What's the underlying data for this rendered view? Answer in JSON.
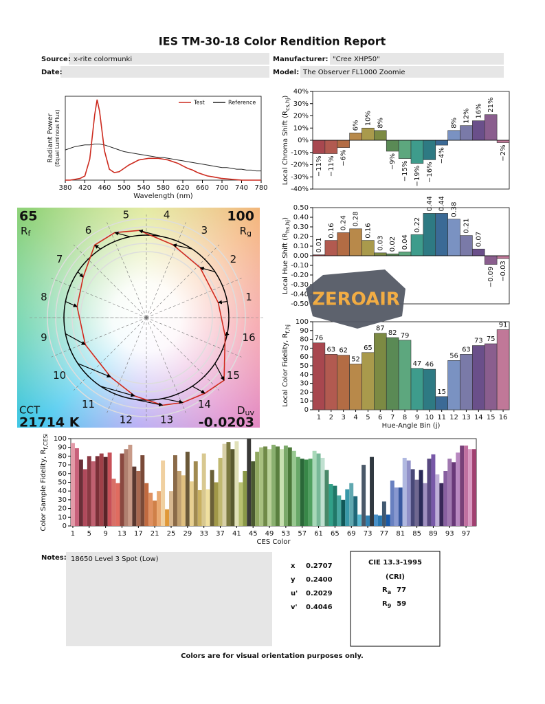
{
  "header": {
    "title": "IES TM-30-18 Color Rendition Report",
    "source_label": "Source:",
    "source": "x-rite colormunki",
    "date_label": "Date:",
    "manufacturer_label": "Manufacturer:",
    "manufacturer": "\"Cree XHP50\"",
    "model_label": "Model:",
    "model": "The Observer FL1000 Zoomie"
  },
  "chart_data": [
    {
      "type": "line",
      "x_label": "Wavelength (nm)",
      "y_label": "Radiant Power",
      "y_label_note": "(Equal Luminous Flux)",
      "legend": "upper right",
      "x": [
        380,
        390,
        400,
        410,
        420,
        430,
        440,
        445,
        450,
        460,
        470,
        480,
        490,
        500,
        510,
        520,
        530,
        540,
        550,
        560,
        570,
        580,
        590,
        600,
        610,
        620,
        630,
        640,
        650,
        660,
        670,
        680,
        690,
        700,
        710,
        720,
        730,
        740,
        750,
        760,
        770,
        780
      ],
      "series": [
        {
          "name": "Test",
          "color": "#cc2a1e",
          "values": [
            0,
            0,
            0.01,
            0.02,
            0.05,
            0.25,
            0.78,
            0.96,
            0.82,
            0.35,
            0.13,
            0.09,
            0.1,
            0.14,
            0.18,
            0.21,
            0.24,
            0.25,
            0.26,
            0.26,
            0.26,
            0.25,
            0.24,
            0.22,
            0.2,
            0.17,
            0.14,
            0.12,
            0.09,
            0.07,
            0.05,
            0.04,
            0.03,
            0.02,
            0.015,
            0.01,
            0.005,
            0,
            0,
            0,
            0,
            0
          ]
        },
        {
          "name": "Reference",
          "color": "#222222",
          "values": [
            0.36,
            0.38,
            0.4,
            0.41,
            0.42,
            0.42,
            0.43,
            0.43,
            0.43,
            0.42,
            0.4,
            0.38,
            0.36,
            0.34,
            0.33,
            0.32,
            0.31,
            0.3,
            0.29,
            0.28,
            0.27,
            0.27,
            0.26,
            0.25,
            0.24,
            0.23,
            0.22,
            0.21,
            0.2,
            0.19,
            0.18,
            0.17,
            0.16,
            0.15,
            0.15,
            0.14,
            0.13,
            0.13,
            0.12,
            0.12,
            0.11,
            0.11
          ]
        }
      ],
      "xlim": [
        380,
        780
      ],
      "xticks": [
        380,
        420,
        460,
        500,
        540,
        580,
        620,
        660,
        700,
        740,
        780
      ],
      "ylim": [
        0,
        1
      ]
    },
    {
      "type": "bar",
      "y_label": "Local Chroma Shift (R",
      "y_label_sub": "cs,hj",
      "y_label_end": ")",
      "values": [
        -11,
        -11,
        -6,
        6,
        10,
        8,
        -9,
        -15,
        -19,
        -16,
        -4,
        8,
        12,
        16,
        21,
        -2
      ],
      "value_labels": [
        "−11%",
        "−11%",
        "−6%",
        "6%",
        "10%",
        "8%",
        "−9%",
        "−15%",
        "−19%",
        "−16%",
        "−4%",
        "8%",
        "12%",
        "16%",
        "21%",
        "−2%"
      ],
      "colors": [
        "#a8474f",
        "#b25a50",
        "#b36c44",
        "#b8894a",
        "#a99a4c",
        "#7c8a43",
        "#5a8a55",
        "#5da77e",
        "#3e9c8c",
        "#2e7a83",
        "#3b6a96",
        "#7a92c2",
        "#7a7aa8",
        "#6a4f8a",
        "#8a5e8e",
        "#c07898"
      ],
      "ylim": [
        -40,
        40
      ],
      "yticks": [
        {
          "value": -40,
          "label": "-40%"
        },
        {
          "value": -30,
          "label": "-30%"
        },
        {
          "value": -20,
          "label": "-20%"
        },
        {
          "value": -10,
          "label": "-10%"
        },
        {
          "value": 0,
          "label": "0%"
        },
        {
          "value": 10,
          "label": "10%"
        },
        {
          "value": 20,
          "label": "20%"
        },
        {
          "value": 30,
          "label": "30%"
        },
        {
          "value": 40,
          "label": "40%"
        }
      ]
    },
    {
      "type": "bar",
      "y_label": "Local Hue Shift (R",
      "y_label_sub": "hs,hj",
      "y_label_end": ")",
      "values": [
        0.01,
        0.16,
        0.24,
        0.28,
        0.16,
        0.03,
        0.02,
        0.04,
        0.22,
        0.44,
        0.44,
        0.38,
        0.21,
        0.07,
        -0.09,
        -0.03
      ],
      "value_labels": [
        "0.01",
        "0.16",
        "0.24",
        "0.28",
        "0.16",
        "0.03",
        "0.02",
        "0.04",
        "0.22",
        "0.44",
        "0.44",
        "0.38",
        "0.21",
        "0.07",
        "−0.09",
        "−0.03"
      ],
      "colors": [
        "#a8474f",
        "#b25a50",
        "#b36c44",
        "#b8894a",
        "#a99a4c",
        "#7c8a43",
        "#5a8a55",
        "#5da77e",
        "#3e9c8c",
        "#2e7a83",
        "#3b6a96",
        "#7a92c2",
        "#7a7aa8",
        "#6a4f8a",
        "#8a5e8e",
        "#c07898"
      ],
      "ylim": [
        -0.5,
        0.5
      ],
      "yticks": [
        {
          "value": -0.5,
          "label": "-0.50"
        },
        {
          "value": -0.4,
          "label": "-0.40"
        },
        {
          "value": -0.3,
          "label": "-0.30"
        },
        {
          "value": -0.2,
          "label": "-0.20"
        },
        {
          "value": -0.1,
          "label": "-0.10"
        },
        {
          "value": 0,
          "label": "0.00"
        },
        {
          "value": 0.1,
          "label": "0.10"
        },
        {
          "value": 0.2,
          "label": "0.20"
        },
        {
          "value": 0.3,
          "label": "0.30"
        },
        {
          "value": 0.4,
          "label": "0.40"
        },
        {
          "value": 0.5,
          "label": "0.50"
        }
      ]
    },
    {
      "type": "bar",
      "y_label": "Local Color Fidelity, R",
      "y_label_sub": "f,hj",
      "x_label": "Hue-Angle Bin (j)",
      "categories": [
        1,
        2,
        3,
        4,
        5,
        6,
        7,
        8,
        9,
        10,
        11,
        12,
        13,
        14,
        15,
        16
      ],
      "values": [
        76,
        63,
        62,
        52,
        65,
        87,
        82,
        79,
        47,
        46,
        15,
        56,
        63,
        73,
        75,
        91
      ],
      "colors": [
        "#a8474f",
        "#b25a50",
        "#b36c44",
        "#b8894a",
        "#a99a4c",
        "#7c8a43",
        "#5a8a55",
        "#5da77e",
        "#3e9c8c",
        "#2e7a83",
        "#3b6a96",
        "#7a92c2",
        "#7a7aa8",
        "#6a4f8a",
        "#8a5e8e",
        "#c07898"
      ],
      "ylim": [
        0,
        100
      ],
      "yticks": [
        0,
        10,
        20,
        30,
        40,
        50,
        60,
        70,
        80,
        90,
        100
      ]
    },
    {
      "type": "bar",
      "y_label": "Color Sample Fidelity, R",
      "y_label_sub": "f,CESi",
      "x_label": "CES Color",
      "categories": [
        1,
        null,
        null,
        null,
        5,
        null,
        null,
        null,
        9,
        null,
        null,
        null,
        13,
        null,
        null,
        null,
        17,
        null,
        null,
        null,
        21,
        null,
        null,
        null,
        25,
        null,
        null,
        null,
        29,
        null,
        null,
        null,
        33,
        null,
        null,
        null,
        37,
        null,
        null,
        null,
        41,
        null,
        null,
        null,
        45,
        null,
        null,
        null,
        49,
        null,
        null,
        null,
        53,
        null,
        null,
        null,
        57,
        null,
        null,
        null,
        61,
        null,
        null,
        null,
        65,
        null,
        null,
        null,
        69,
        null,
        null,
        null,
        73,
        null,
        null,
        null,
        77,
        null,
        null,
        null,
        81,
        null,
        null,
        null,
        85,
        null,
        null,
        null,
        89,
        null,
        null,
        null,
        93,
        null,
        null,
        null,
        97,
        null,
        null
      ],
      "values": [
        95,
        89,
        76,
        65,
        80,
        74,
        80,
        83,
        79,
        84,
        54,
        49,
        83,
        88,
        93,
        68,
        63,
        81,
        49,
        38,
        29,
        40,
        75,
        19,
        40,
        81,
        63,
        58,
        85,
        51,
        74,
        41,
        83,
        42,
        64,
        50,
        78,
        94,
        96,
        88,
        97,
        50,
        63,
        100,
        74,
        85,
        90,
        91,
        88,
        93,
        91,
        88,
        92,
        90,
        86,
        79,
        77,
        76,
        77,
        86,
        83,
        78,
        64,
        48,
        46,
        35,
        30,
        42,
        49,
        34,
        13,
        70,
        12,
        79,
        13,
        12,
        28,
        13,
        52,
        44,
        44,
        78,
        75,
        65,
        53,
        64,
        49,
        77,
        82,
        59,
        49,
        63,
        77,
        73,
        84,
        92,
        92,
        88,
        88
      ],
      "colors": [
        "#e29aa8",
        "#c8607a",
        "#6a2f38",
        "#b04a5c",
        "#8a3a44",
        "#c06070",
        "#7a3038",
        "#a04048",
        "#5a2428",
        "#c85058",
        "#d87068",
        "#e06c60",
        "#8a4840",
        "#b08070",
        "#c89a88",
        "#5a3830",
        "#a86850",
        "#7a4a38",
        "#c06a40",
        "#e09060",
        "#d08048",
        "#e8a870",
        "#f0d0a0",
        "#e09838",
        "#d8b890",
        "#8a6a48",
        "#c0a070",
        "#e0c080",
        "#6a5838",
        "#e8d090",
        "#a08a50",
        "#c8b060",
        "#d8c890",
        "#f0e0a0",
        "#6a6038",
        "#a09848",
        "#c0b870",
        "#d8d0a8",
        "#7a7840",
        "#5a5a30",
        "#e0e0b8",
        "#b8c070",
        "#8a9848",
        "#3a3a38",
        "#4a5a30",
        "#90a860",
        "#a8c080",
        "#708a48",
        "#b8d098",
        "#8ab070",
        "#5a8040",
        "#c8e0b0",
        "#7aa868",
        "#4a7838",
        "#98c890",
        "#68a868",
        "#2a6838",
        "#388848",
        "#50a060",
        "#a8d8b8",
        "#78b898",
        "#c0e0d0",
        "#488868",
        "#30a088",
        "#207868",
        "#48a8a0",
        "#105858",
        "#3898a8",
        "#60a8b0",
        "#206878",
        "#58b8d0",
        "#4a5868",
        "#3080b0",
        "#303840",
        "#4890c8",
        "#2878b0",
        "#405870",
        "#1858a8",
        "#6880c0",
        "#8898d0",
        "#3858a0",
        "#b0b8e0",
        "#9090c8",
        "#484878",
        "#706890",
        "#2a2a58",
        "#a090c0",
        "#584880",
        "#7858a8",
        "#c0b0d8",
        "#382858",
        "#8860a0",
        "#a078b0",
        "#683878",
        "#b888c0",
        "#784078",
        "#c070a0",
        "#d898c0",
        "#a04070"
      ],
      "ylim": [
        0,
        100
      ],
      "yticks": [
        0,
        10,
        20,
        30,
        40,
        50,
        60,
        70,
        80,
        90,
        100
      ]
    }
  ],
  "vector_graphic": {
    "rf": 65,
    "rf_symbol": "R",
    "rf_sub": "f",
    "rg": 100,
    "rg_symbol": "R",
    "rg_sub": "g",
    "cct_label": "CCT",
    "cct": "21714 K",
    "duv_symbol": "D",
    "duv_sub": "uv",
    "duv": "-0.0203"
  },
  "watermark": "ZEROAIR",
  "notes": {
    "label": "Notes:",
    "text": "18650 Level 3 Spot (Low)"
  },
  "chromaticity": [
    [
      "x",
      "0.2707"
    ],
    [
      "y",
      "0.2400"
    ],
    [
      "u'",
      "0.2029"
    ],
    [
      "v'",
      "0.4046"
    ]
  ],
  "cri": {
    "title": "CIE 13.3-1995",
    "subtitle": "(CRI)",
    "ra_symbol": "R",
    "ra_sub": "a",
    "ra": 77,
    "r9_symbol": "R",
    "r9_sub": "9",
    "r9": 59
  },
  "footer": "Colors are for visual orientation purposes only."
}
